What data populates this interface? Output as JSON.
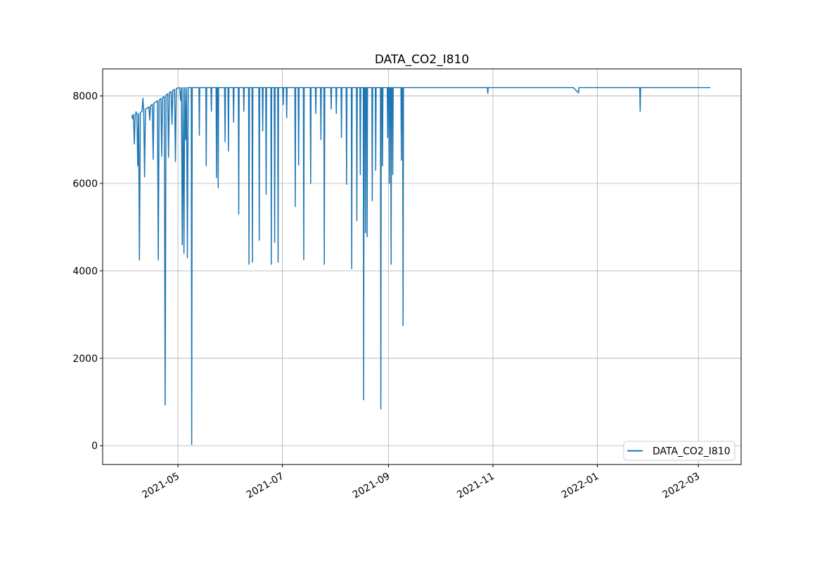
{
  "chart": {
    "title": "DATA_CO2_I810",
    "legend": {
      "label": "DATA_CO2_I810",
      "position": "lower right"
    },
    "colors": {
      "line": "#1f77b4",
      "grid": "#b0b0b0",
      "spine": "#000000",
      "legend_border": "#cccccc",
      "background": "#ffffff"
    }
  },
  "chart_data": {
    "type": "line",
    "title": "DATA_CO2_I810",
    "xlabel": "",
    "ylabel": "",
    "grid": true,
    "legend_position": "lower right",
    "x_domain": [
      "2021-03-18",
      "2022-03-26"
    ],
    "ylim": [
      -430,
      8620
    ],
    "y_ticks": [
      0,
      2000,
      4000,
      6000,
      8000
    ],
    "y_tick_labels": [
      "0",
      "2000",
      "4000",
      "6000",
      "8000"
    ],
    "x_ticks": [
      {
        "date": "2021-05-01",
        "label": "2021-05"
      },
      {
        "date": "2021-07-01",
        "label": "2021-07"
      },
      {
        "date": "2021-09-01",
        "label": "2021-09"
      },
      {
        "date": "2021-11-01",
        "label": "2021-11"
      },
      {
        "date": "2022-01-01",
        "label": "2022-01"
      },
      {
        "date": "2022-03-01",
        "label": "2022-03"
      }
    ],
    "series": [
      {
        "name": "DATA_CO2_I810",
        "color": "#1f77b4",
        "points": [
          [
            "2021-04-04",
            7560
          ],
          [
            "2021-04-04T12:00",
            7480
          ],
          [
            "2021-04-05",
            7580
          ],
          [
            "2021-04-05T12:00",
            6900
          ],
          [
            "2021-04-06",
            7550
          ],
          [
            "2021-04-06T12:00",
            7640
          ],
          [
            "2021-04-07",
            7580
          ],
          [
            "2021-04-07T12:00",
            6400
          ],
          [
            "2021-04-08",
            7600
          ],
          [
            "2021-04-08T12:00",
            4250
          ],
          [
            "2021-04-09",
            7620
          ],
          [
            "2021-04-10",
            7650
          ],
          [
            "2021-04-10T12:00",
            7950
          ],
          [
            "2021-04-11",
            7670
          ],
          [
            "2021-04-11T12:00",
            6150
          ],
          [
            "2021-04-12",
            7700
          ],
          [
            "2021-04-13",
            7720
          ],
          [
            "2021-04-14",
            7750
          ],
          [
            "2021-04-14T12:00",
            7450
          ],
          [
            "2021-04-15",
            7780
          ],
          [
            "2021-04-16",
            7810
          ],
          [
            "2021-04-16T12:00",
            6550
          ],
          [
            "2021-04-17",
            7840
          ],
          [
            "2021-04-18",
            7860
          ],
          [
            "2021-04-19",
            7890
          ],
          [
            "2021-04-19T12:00",
            4250
          ],
          [
            "2021-04-20",
            7910
          ],
          [
            "2021-04-21",
            7940
          ],
          [
            "2021-04-21T12:00",
            6620
          ],
          [
            "2021-04-22",
            7960
          ],
          [
            "2021-04-23",
            7990
          ],
          [
            "2021-04-23T12:00",
            930
          ],
          [
            "2021-04-24",
            8020
          ],
          [
            "2021-04-25",
            8050
          ],
          [
            "2021-04-25T12:00",
            6600
          ],
          [
            "2021-04-26",
            8080
          ],
          [
            "2021-04-27",
            8100
          ],
          [
            "2021-04-27T12:00",
            7350
          ],
          [
            "2021-04-28",
            8130
          ],
          [
            "2021-04-29",
            8150
          ],
          [
            "2021-04-29T12:00",
            6500
          ],
          [
            "2021-04-30",
            8170
          ],
          [
            "2021-05-01",
            8185
          ],
          [
            "2021-05-02",
            8190
          ],
          [
            "2021-05-02T12:00",
            7900
          ],
          [
            "2021-05-03",
            8192
          ],
          [
            "2021-05-03T12:00",
            4600
          ],
          [
            "2021-05-04",
            8192
          ],
          [
            "2021-05-04T12:00",
            4400
          ],
          [
            "2021-05-05",
            8192
          ],
          [
            "2021-05-05T12:00",
            7000
          ],
          [
            "2021-05-06",
            8192
          ],
          [
            "2021-05-06T12:00",
            4300
          ],
          [
            "2021-05-07",
            8192
          ],
          [
            "2021-05-08T18:00",
            8192
          ],
          [
            "2021-05-09",
            30
          ],
          [
            "2021-05-09T08:00",
            8192
          ],
          [
            "2021-05-10",
            8192
          ],
          [
            "2021-05-13T06:00",
            8192
          ],
          [
            "2021-05-13T12:00",
            7100
          ],
          [
            "2021-05-13T18:00",
            8192
          ],
          [
            "2021-05-17T06:00",
            8192
          ],
          [
            "2021-05-17T12:00",
            6400
          ],
          [
            "2021-05-17T18:00",
            8192
          ],
          [
            "2021-05-20T06:00",
            8192
          ],
          [
            "2021-05-20T12:00",
            7650
          ],
          [
            "2021-05-20T18:00",
            8192
          ],
          [
            "2021-05-23T06:00",
            8192
          ],
          [
            "2021-05-23T12:00",
            6130
          ],
          [
            "2021-05-23T18:00",
            8192
          ],
          [
            "2021-05-24T06:00",
            8192
          ],
          [
            "2021-05-24T12:00",
            5900
          ],
          [
            "2021-05-24T18:00",
            8192
          ],
          [
            "2021-05-28T06:00",
            8192
          ],
          [
            "2021-05-28T12:00",
            6950
          ],
          [
            "2021-05-28T18:00",
            8192
          ],
          [
            "2021-05-30T06:00",
            8192
          ],
          [
            "2021-05-30T12:00",
            6740
          ],
          [
            "2021-05-30T18:00",
            8192
          ],
          [
            "2021-06-02T06:00",
            8192
          ],
          [
            "2021-06-02T12:00",
            7400
          ],
          [
            "2021-06-02T18:00",
            8192
          ],
          [
            "2021-06-05T06:00",
            8192
          ],
          [
            "2021-06-05T12:00",
            5300
          ],
          [
            "2021-06-05T18:00",
            8192
          ],
          [
            "2021-06-08T06:00",
            8192
          ],
          [
            "2021-06-08T12:00",
            7650
          ],
          [
            "2021-06-08T18:00",
            8192
          ],
          [
            "2021-06-11T06:00",
            8192
          ],
          [
            "2021-06-11T12:00",
            4150
          ],
          [
            "2021-06-11T18:00",
            8192
          ],
          [
            "2021-06-13T06:00",
            8192
          ],
          [
            "2021-06-13T12:00",
            4200
          ],
          [
            "2021-06-13T18:00",
            8192
          ],
          [
            "2021-06-17T06:00",
            8192
          ],
          [
            "2021-06-17T12:00",
            4700
          ],
          [
            "2021-06-17T18:00",
            8192
          ],
          [
            "2021-06-19T06:00",
            8192
          ],
          [
            "2021-06-19T12:00",
            7200
          ],
          [
            "2021-06-19T18:00",
            8192
          ],
          [
            "2021-06-21T06:00",
            8192
          ],
          [
            "2021-06-21T12:00",
            5750
          ],
          [
            "2021-06-21T18:00",
            8192
          ],
          [
            "2021-06-24T06:00",
            8192
          ],
          [
            "2021-06-24T12:00",
            4150
          ],
          [
            "2021-06-24T18:00",
            8192
          ],
          [
            "2021-06-26T06:00",
            8192
          ],
          [
            "2021-06-26T12:00",
            4650
          ],
          [
            "2021-06-26T18:00",
            8192
          ],
          [
            "2021-06-28T06:00",
            8192
          ],
          [
            "2021-06-28T12:00",
            4200
          ],
          [
            "2021-06-28T18:00",
            8192
          ],
          [
            "2021-07-01T06:00",
            8192
          ],
          [
            "2021-07-01T12:00",
            7800
          ],
          [
            "2021-07-01T18:00",
            8192
          ],
          [
            "2021-07-03T06:00",
            8192
          ],
          [
            "2021-07-03T12:00",
            7500
          ],
          [
            "2021-07-03T18:00",
            8192
          ],
          [
            "2021-07-08T06:00",
            8192
          ],
          [
            "2021-07-08T12:00",
            5470
          ],
          [
            "2021-07-08T18:00",
            8192
          ],
          [
            "2021-07-10T06:00",
            8192
          ],
          [
            "2021-07-10T12:00",
            6420
          ],
          [
            "2021-07-10T18:00",
            8192
          ],
          [
            "2021-07-13T06:00",
            8192
          ],
          [
            "2021-07-13T12:00",
            4250
          ],
          [
            "2021-07-13T18:00",
            8192
          ],
          [
            "2021-07-17T06:00",
            8192
          ],
          [
            "2021-07-17T12:00",
            6000
          ],
          [
            "2021-07-17T18:00",
            8192
          ],
          [
            "2021-07-20T06:00",
            8192
          ],
          [
            "2021-07-20T12:00",
            7600
          ],
          [
            "2021-07-20T18:00",
            8192
          ],
          [
            "2021-07-23T06:00",
            8192
          ],
          [
            "2021-07-23T12:00",
            7000
          ],
          [
            "2021-07-23T18:00",
            8192
          ],
          [
            "2021-07-25T06:00",
            8192
          ],
          [
            "2021-07-25T12:00",
            4150
          ],
          [
            "2021-07-25T18:00",
            8192
          ],
          [
            "2021-07-29T06:00",
            8192
          ],
          [
            "2021-07-29T12:00",
            7700
          ],
          [
            "2021-07-29T18:00",
            8192
          ],
          [
            "2021-08-01T06:00",
            8192
          ],
          [
            "2021-08-01T12:00",
            7600
          ],
          [
            "2021-08-01T18:00",
            8192
          ],
          [
            "2021-08-04T06:00",
            8192
          ],
          [
            "2021-08-04T12:00",
            7050
          ],
          [
            "2021-08-04T18:00",
            8192
          ],
          [
            "2021-08-07T06:00",
            8192
          ],
          [
            "2021-08-07T12:00",
            5980
          ],
          [
            "2021-08-07T18:00",
            8192
          ],
          [
            "2021-08-10T06:00",
            8192
          ],
          [
            "2021-08-10T12:00",
            4050
          ],
          [
            "2021-08-10T18:00",
            8192
          ],
          [
            "2021-08-13T06:00",
            8192
          ],
          [
            "2021-08-13T12:00",
            5150
          ],
          [
            "2021-08-13T18:00",
            8192
          ],
          [
            "2021-08-15T06:00",
            8192
          ],
          [
            "2021-08-15T12:00",
            6200
          ],
          [
            "2021-08-15T18:00",
            8192
          ],
          [
            "2021-08-17T06:00",
            8192
          ],
          [
            "2021-08-17T12:00",
            1050
          ],
          [
            "2021-08-17T18:00",
            8192
          ],
          [
            "2021-08-18T06:00",
            8192
          ],
          [
            "2021-08-18T12:00",
            4870
          ],
          [
            "2021-08-18T18:00",
            8192
          ],
          [
            "2021-08-19T06:00",
            8192
          ],
          [
            "2021-08-19T12:00",
            4780
          ],
          [
            "2021-08-19T18:00",
            8192
          ],
          [
            "2021-08-22T06:00",
            8192
          ],
          [
            "2021-08-22T12:00",
            5600
          ],
          [
            "2021-08-22T18:00",
            8192
          ],
          [
            "2021-08-24T06:00",
            8192
          ],
          [
            "2021-08-24T12:00",
            6300
          ],
          [
            "2021-08-24T18:00",
            8192
          ],
          [
            "2021-08-27T06:00",
            8192
          ],
          [
            "2021-08-27T12:00",
            840
          ],
          [
            "2021-08-27T18:00",
            8192
          ],
          [
            "2021-08-28T06:00",
            8192
          ],
          [
            "2021-08-28T12:00",
            6400
          ],
          [
            "2021-08-28T18:00",
            8192
          ],
          [
            "2021-08-31T06:00",
            8192
          ],
          [
            "2021-08-31T12:00",
            7050
          ],
          [
            "2021-08-31T18:00",
            8192
          ],
          [
            "2021-09-01T06:00",
            8192
          ],
          [
            "2021-09-01T12:00",
            6000
          ],
          [
            "2021-09-01T18:00",
            8192
          ],
          [
            "2021-09-02T06:00",
            8192
          ],
          [
            "2021-09-02T12:00",
            4150
          ],
          [
            "2021-09-02T18:00",
            8192
          ],
          [
            "2021-09-03T06:00",
            8192
          ],
          [
            "2021-09-03T12:00",
            6200
          ],
          [
            "2021-09-03T18:00",
            8192
          ],
          [
            "2021-09-08T06:00",
            8192
          ],
          [
            "2021-09-08T12:00",
            6530
          ],
          [
            "2021-09-08T18:00",
            8192
          ],
          [
            "2021-09-09T06:00",
            8192
          ],
          [
            "2021-09-09T12:00",
            2750
          ],
          [
            "2021-09-09T18:00",
            8192
          ],
          [
            "2021-10-28T18:00",
            8192
          ],
          [
            "2021-10-29",
            8060
          ],
          [
            "2021-10-29T06:00",
            8192
          ],
          [
            "2021-12-18",
            8192
          ],
          [
            "2021-12-20",
            8110
          ],
          [
            "2021-12-21",
            8070
          ],
          [
            "2021-12-21T06:00",
            8192
          ],
          [
            "2022-01-25T18:00",
            8192
          ],
          [
            "2022-01-26",
            7650
          ],
          [
            "2022-01-26T06:00",
            8192
          ],
          [
            "2022-03-08",
            8192
          ]
        ]
      }
    ]
  }
}
